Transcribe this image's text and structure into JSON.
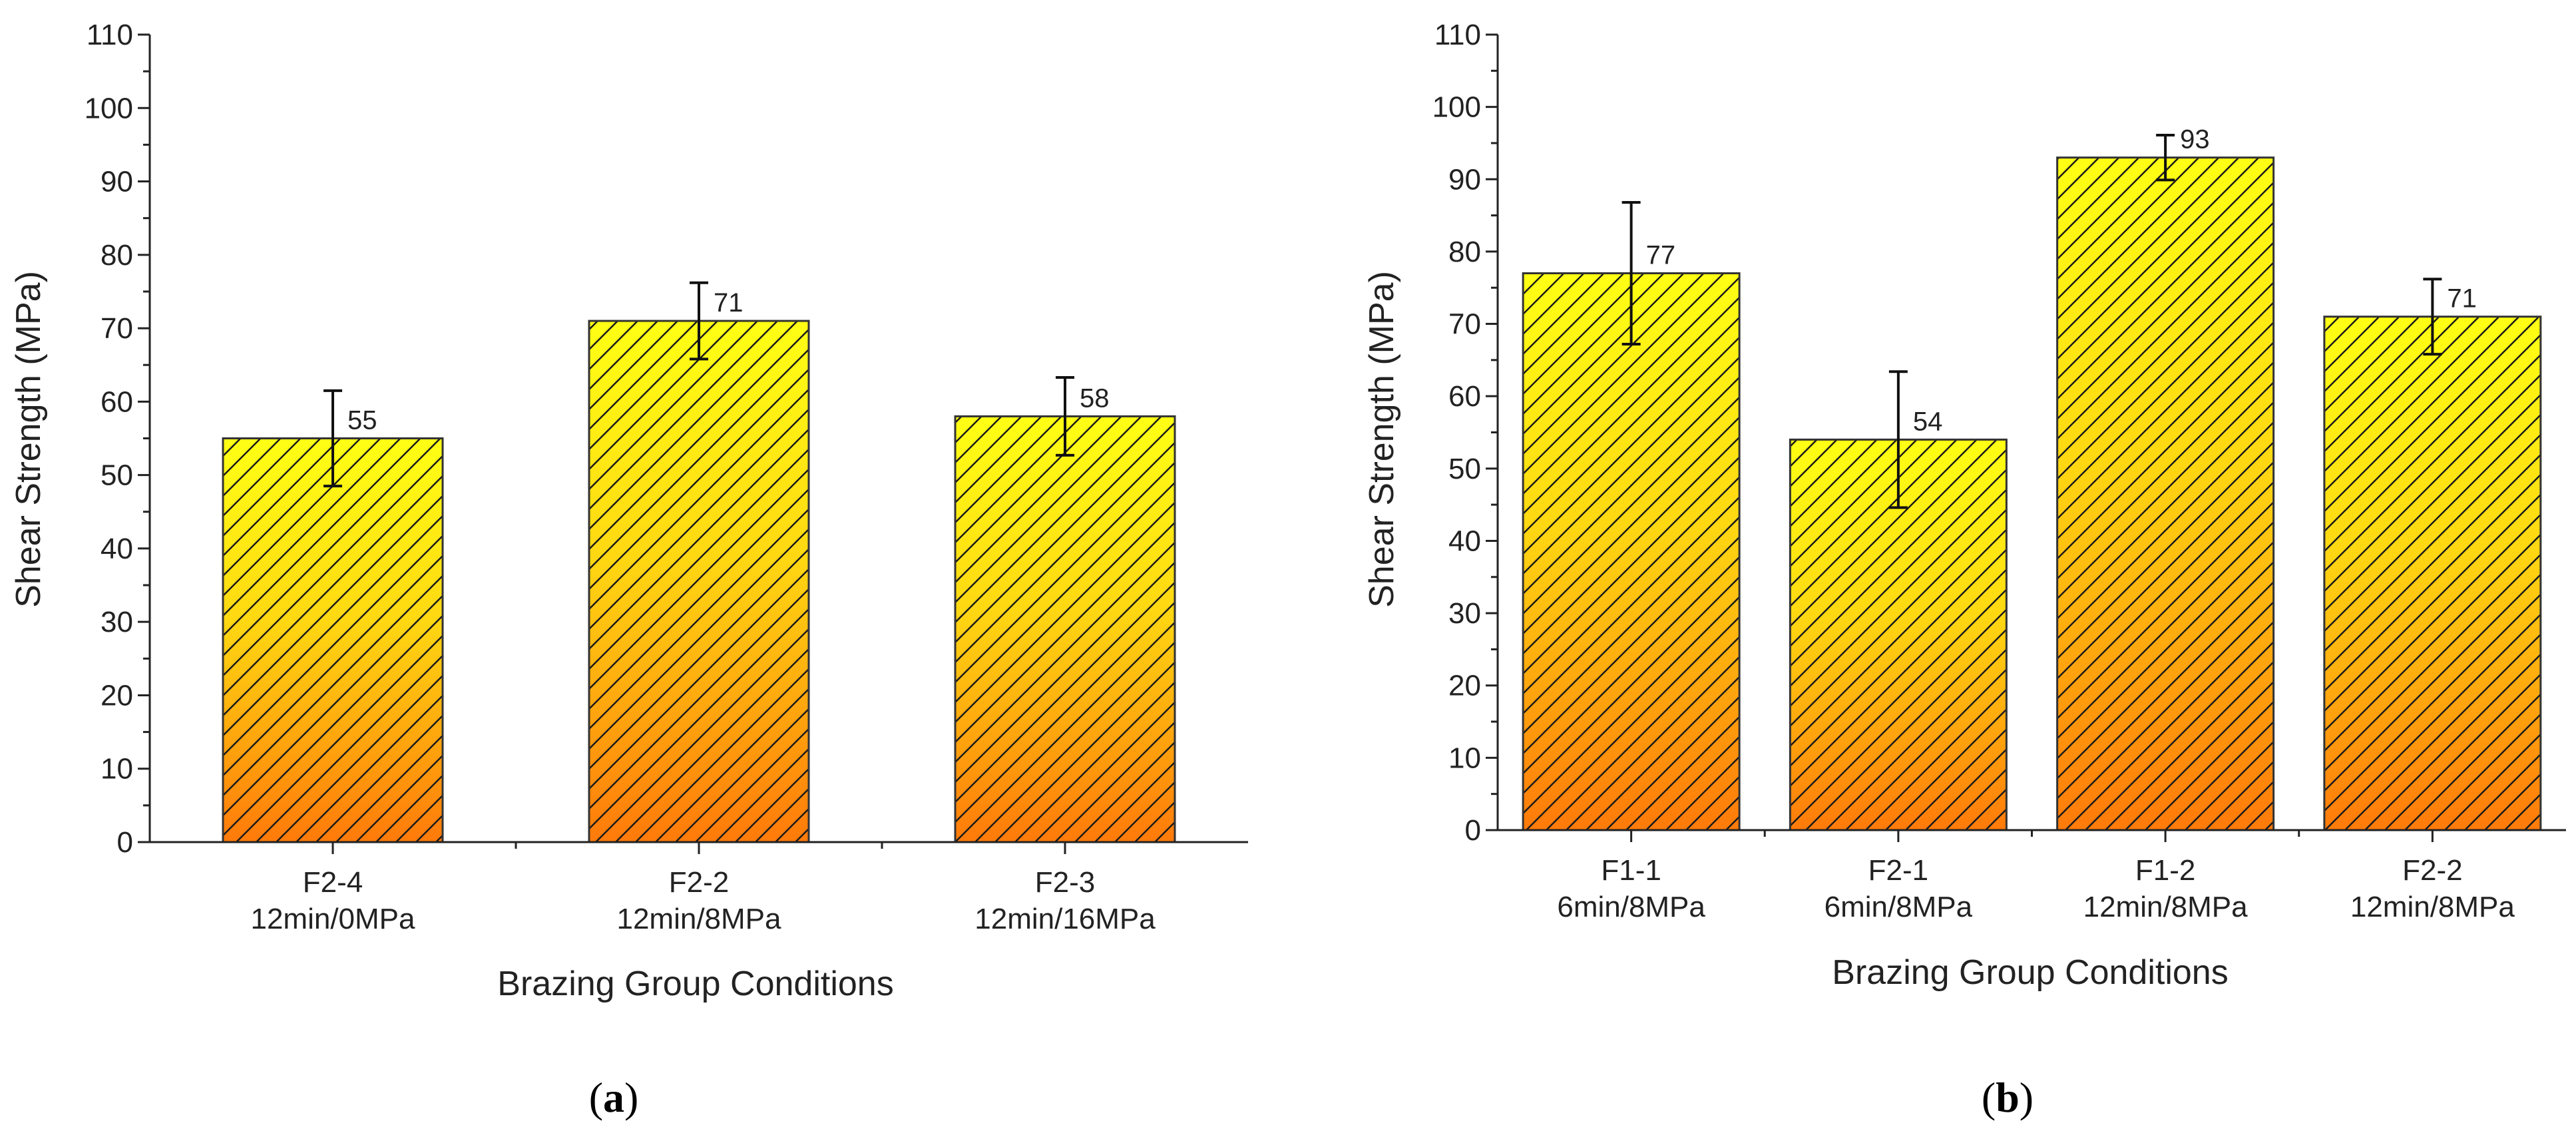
{
  "chart_data": [
    {
      "type": "bar",
      "caption_letter": "a",
      "categories": [
        "F2-4",
        "F2-2",
        "F2-3"
      ],
      "sublabels": [
        "12min/0MPa",
        "12min/8MPa",
        "12min/16MPa"
      ],
      "values": [
        55,
        71,
        58
      ],
      "error_low": [
        48.5,
        65.8,
        52.7
      ],
      "error_high": [
        61.5,
        76.2,
        63.3
      ],
      "xlabel": "Brazing Group Conditions",
      "ylabel": "Shear Strength (MPa)",
      "ylim": [
        0,
        110
      ],
      "yticks": [
        0,
        10,
        20,
        30,
        40,
        50,
        60,
        70,
        80,
        90,
        100,
        110
      ],
      "fill_colors": {
        "top": "#ffff14",
        "bottom": "#ff7a0a"
      },
      "hatch_color": "#1a1a1a"
    },
    {
      "type": "bar",
      "caption_letter": "b",
      "categories": [
        "F1-1",
        "F2-1",
        "F1-2",
        "F2-2"
      ],
      "sublabels": [
        "6min/8MPa",
        "6min/8MPa",
        "12min/8MPa",
        "12min/8MPa"
      ],
      "values": [
        77,
        54,
        93,
        71
      ],
      "error_low": [
        67.2,
        44.6,
        89.9,
        65.8
      ],
      "error_high": [
        86.8,
        63.4,
        96.1,
        76.2
      ],
      "xlabel": "Brazing Group Conditions",
      "ylabel": "Shear Strength (MPa)",
      "ylim": [
        0,
        110
      ],
      "yticks": [
        0,
        10,
        20,
        30,
        40,
        50,
        60,
        70,
        80,
        90,
        100,
        110
      ],
      "fill_colors": {
        "top": "#ffff14",
        "bottom": "#ff7a0a"
      },
      "hatch_color": "#1a1a1a"
    }
  ],
  "captions": {
    "a": {
      "open": "(",
      "letter": "a",
      "close": ")"
    },
    "b": {
      "open": "(",
      "letter": "b",
      "close": ")"
    }
  }
}
